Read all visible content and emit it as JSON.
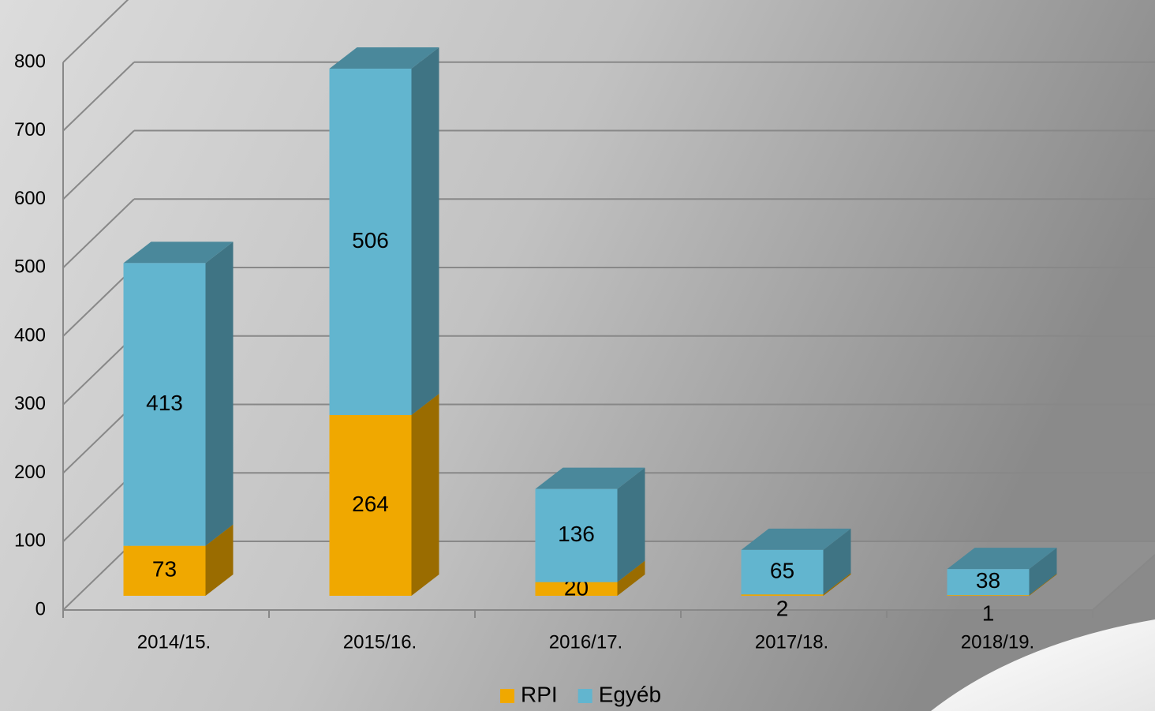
{
  "chart_data": {
    "type": "bar3d_stacked",
    "categories": [
      "2014/15.",
      "2015/16.",
      "2016/17.",
      "2017/18.",
      "2018/19."
    ],
    "series": [
      {
        "name": "RPI",
        "color": "#f0a800",
        "values": [
          73,
          264,
          20,
          2,
          1
        ]
      },
      {
        "name": "Egyéb",
        "color": "#62b5cf",
        "values": [
          413,
          506,
          136,
          65,
          38
        ]
      }
    ],
    "ylim": [
      0,
      800
    ],
    "yticks": [
      0,
      100,
      200,
      300,
      400,
      500,
      600,
      700,
      800
    ],
    "grid": true,
    "legend": "bottom"
  }
}
